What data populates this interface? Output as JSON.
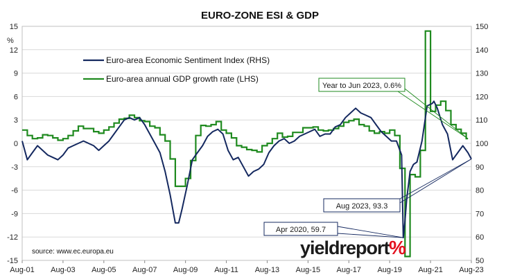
{
  "colors": {
    "esi": "#14285f",
    "gdp": "#1f8a1f",
    "grid": "#d9d9d9",
    "logo_accent": "#e3101e"
  },
  "chart_data": {
    "type": "line",
    "title": "EURO-ZONE ESI & GDP",
    "left_axis": {
      "unit_label": "%",
      "ylim": [
        -15,
        15
      ],
      "ticks": [
        "15",
        "12",
        "9",
        "6",
        "3",
        "0",
        "-3",
        "-6",
        "-9",
        "-12",
        "-15"
      ]
    },
    "right_axis": {
      "ylim": [
        50,
        150
      ],
      "ticks": [
        "150",
        "140",
        "130",
        "120",
        "110",
        "100",
        "90",
        "80",
        "70",
        "60",
        "50"
      ]
    },
    "x_axis": {
      "range": [
        "2001-08",
        "2023-08"
      ],
      "ticks": [
        "Aug-01",
        "Aug-03",
        "Aug-05",
        "Aug-07",
        "Aug-09",
        "Aug-11",
        "Aug-13",
        "Aug-15",
        "Aug-17",
        "Aug-19",
        "Aug-21",
        "Aug-23"
      ]
    },
    "grid": "horizontal",
    "legend_position": "top-left",
    "series": [
      {
        "name": "Euro-area Economic Sentiment Index (RHS)",
        "axis": "right",
        "points": [
          [
            "2001-08",
            101
          ],
          [
            "2001-11",
            93
          ],
          [
            "2002-02",
            96
          ],
          [
            "2002-05",
            99
          ],
          [
            "2002-08",
            97
          ],
          [
            "2002-11",
            95
          ],
          [
            "2003-02",
            94
          ],
          [
            "2003-05",
            93
          ],
          [
            "2003-08",
            95
          ],
          [
            "2003-11",
            98
          ],
          [
            "2004-02",
            99
          ],
          [
            "2004-05",
            100
          ],
          [
            "2004-08",
            101
          ],
          [
            "2004-11",
            100
          ],
          [
            "2005-02",
            99
          ],
          [
            "2005-05",
            97
          ],
          [
            "2005-08",
            99
          ],
          [
            "2005-11",
            101
          ],
          [
            "2006-02",
            104
          ],
          [
            "2006-05",
            107
          ],
          [
            "2006-08",
            110
          ],
          [
            "2006-11",
            111
          ],
          [
            "2007-02",
            110
          ],
          [
            "2007-05",
            111
          ],
          [
            "2007-08",
            108
          ],
          [
            "2007-11",
            104
          ],
          [
            "2008-02",
            100
          ],
          [
            "2008-05",
            96
          ],
          [
            "2008-08",
            88
          ],
          [
            "2008-11",
            78
          ],
          [
            "2009-02",
            66
          ],
          [
            "2009-04",
            66
          ],
          [
            "2009-06",
            72
          ],
          [
            "2009-09",
            82
          ],
          [
            "2009-12",
            93
          ],
          [
            "2010-03",
            96
          ],
          [
            "2010-06",
            99
          ],
          [
            "2010-09",
            103
          ],
          [
            "2010-12",
            105
          ],
          [
            "2011-03",
            106
          ],
          [
            "2011-06",
            104
          ],
          [
            "2011-09",
            97
          ],
          [
            "2011-12",
            93
          ],
          [
            "2012-03",
            94
          ],
          [
            "2012-06",
            90
          ],
          [
            "2012-09",
            86
          ],
          [
            "2012-12",
            88
          ],
          [
            "2013-03",
            89
          ],
          [
            "2013-06",
            91
          ],
          [
            "2013-09",
            96
          ],
          [
            "2013-12",
            99
          ],
          [
            "2014-03",
            101
          ],
          [
            "2014-06",
            102
          ],
          [
            "2014-09",
            100
          ],
          [
            "2014-12",
            101
          ],
          [
            "2015-03",
            103
          ],
          [
            "2015-06",
            104
          ],
          [
            "2015-09",
            105
          ],
          [
            "2015-12",
            106
          ],
          [
            "2016-03",
            103
          ],
          [
            "2016-06",
            104
          ],
          [
            "2016-09",
            104
          ],
          [
            "2016-12",
            107
          ],
          [
            "2017-03",
            108
          ],
          [
            "2017-06",
            111
          ],
          [
            "2017-09",
            113
          ],
          [
            "2017-12",
            115
          ],
          [
            "2018-03",
            113
          ],
          [
            "2018-06",
            112
          ],
          [
            "2018-09",
            111
          ],
          [
            "2018-12",
            108
          ],
          [
            "2019-03",
            105
          ],
          [
            "2019-06",
            103
          ],
          [
            "2019-09",
            101
          ],
          [
            "2019-12",
            101
          ],
          [
            "2020-03",
            95
          ],
          [
            "2020-04",
            59.7
          ],
          [
            "2020-05",
            67
          ],
          [
            "2020-06",
            76
          ],
          [
            "2020-08",
            88
          ],
          [
            "2020-10",
            91
          ],
          [
            "2020-12",
            92
          ],
          [
            "2021-03",
            101
          ],
          [
            "2021-06",
            116
          ],
          [
            "2021-09",
            117
          ],
          [
            "2021-10",
            118
          ],
          [
            "2021-12",
            115
          ],
          [
            "2022-03",
            108
          ],
          [
            "2022-06",
            104
          ],
          [
            "2022-09",
            93
          ],
          [
            "2022-12",
            96
          ],
          [
            "2023-03",
            99
          ],
          [
            "2023-06",
            96
          ],
          [
            "2023-08",
            93.3
          ]
        ]
      },
      {
        "name": "Euro-area annual GDP growth rate (LHS)",
        "axis": "left",
        "step": true,
        "points": [
          [
            "2001-08",
            1.7
          ],
          [
            "2001-11",
            1.0
          ],
          [
            "2002-02",
            0.6
          ],
          [
            "2002-05",
            0.7
          ],
          [
            "2002-08",
            1.1
          ],
          [
            "2002-11",
            1.0
          ],
          [
            "2003-02",
            0.7
          ],
          [
            "2003-05",
            0.4
          ],
          [
            "2003-08",
            0.6
          ],
          [
            "2003-11",
            1.0
          ],
          [
            "2004-02",
            1.6
          ],
          [
            "2004-05",
            2.2
          ],
          [
            "2004-08",
            1.9
          ],
          [
            "2004-11",
            1.9
          ],
          [
            "2005-02",
            1.5
          ],
          [
            "2005-05",
            1.3
          ],
          [
            "2005-08",
            1.7
          ],
          [
            "2005-11",
            2.1
          ],
          [
            "2006-02",
            2.6
          ],
          [
            "2006-05",
            3.1
          ],
          [
            "2006-08",
            3.2
          ],
          [
            "2006-11",
            3.6
          ],
          [
            "2007-02",
            3.3
          ],
          [
            "2007-05",
            2.9
          ],
          [
            "2007-08",
            2.8
          ],
          [
            "2007-11",
            2.2
          ],
          [
            "2008-02",
            2.0
          ],
          [
            "2008-05",
            1.1
          ],
          [
            "2008-08",
            0.3
          ],
          [
            "2008-11",
            -2.0
          ],
          [
            "2009-02",
            -5.5
          ],
          [
            "2009-05",
            -5.5
          ],
          [
            "2009-08",
            -4.5
          ],
          [
            "2009-11",
            -2.2
          ],
          [
            "2010-02",
            1.0
          ],
          [
            "2010-05",
            2.3
          ],
          [
            "2010-08",
            2.2
          ],
          [
            "2010-11",
            2.4
          ],
          [
            "2011-02",
            2.8
          ],
          [
            "2011-05",
            1.7
          ],
          [
            "2011-08",
            1.3
          ],
          [
            "2011-11",
            0.7
          ],
          [
            "2012-02",
            -0.3
          ],
          [
            "2012-05",
            -0.5
          ],
          [
            "2012-08",
            -0.8
          ],
          [
            "2012-11",
            -0.9
          ],
          [
            "2013-02",
            -1.1
          ],
          [
            "2013-05",
            -0.3
          ],
          [
            "2013-08",
            0.0
          ],
          [
            "2013-11",
            0.6
          ],
          [
            "2014-02",
            1.3
          ],
          [
            "2014-05",
            0.8
          ],
          [
            "2014-08",
            0.9
          ],
          [
            "2014-11",
            1.4
          ],
          [
            "2015-02",
            1.4
          ],
          [
            "2015-05",
            2.0
          ],
          [
            "2015-08",
            2.0
          ],
          [
            "2015-11",
            2.1
          ],
          [
            "2016-02",
            1.7
          ],
          [
            "2016-05",
            1.6
          ],
          [
            "2016-08",
            1.7
          ],
          [
            "2016-11",
            1.9
          ],
          [
            "2017-02",
            2.2
          ],
          [
            "2017-05",
            2.7
          ],
          [
            "2017-08",
            2.9
          ],
          [
            "2017-11",
            3.1
          ],
          [
            "2018-02",
            2.4
          ],
          [
            "2018-05",
            2.2
          ],
          [
            "2018-08",
            1.6
          ],
          [
            "2018-11",
            1.3
          ],
          [
            "2019-02",
            1.5
          ],
          [
            "2019-05",
            1.3
          ],
          [
            "2019-08",
            1.7
          ],
          [
            "2019-11",
            1.0
          ],
          [
            "2020-02",
            -3.2
          ],
          [
            "2020-05",
            -14.5
          ],
          [
            "2020-08",
            -4.0
          ],
          [
            "2020-11",
            -4.3
          ],
          [
            "2021-02",
            -0.9
          ],
          [
            "2021-05",
            14.4
          ],
          [
            "2021-08",
            4.1
          ],
          [
            "2021-11",
            4.9
          ],
          [
            "2022-02",
            5.4
          ],
          [
            "2022-05",
            4.2
          ],
          [
            "2022-08",
            2.4
          ],
          [
            "2022-11",
            1.8
          ],
          [
            "2023-02",
            1.3
          ],
          [
            "2023-05",
            0.6
          ],
          [
            "2023-06",
            0.6
          ]
        ]
      }
    ],
    "annotations": [
      {
        "text": "Year to Jun 2023, 0.6%",
        "x": "2023-06",
        "y": 0.6,
        "axis": "left"
      },
      {
        "text": "Aug 2023, 93.3",
        "x": "2023-08",
        "y": 93.3,
        "axis": "right"
      },
      {
        "text": "Apr 2020, 59.7",
        "x": "2020-04",
        "y": 59.7,
        "axis": "right"
      }
    ],
    "source": "source: www.ec.europa.eu"
  },
  "logo": {
    "text": "yieldreport",
    "symbol": "%"
  }
}
